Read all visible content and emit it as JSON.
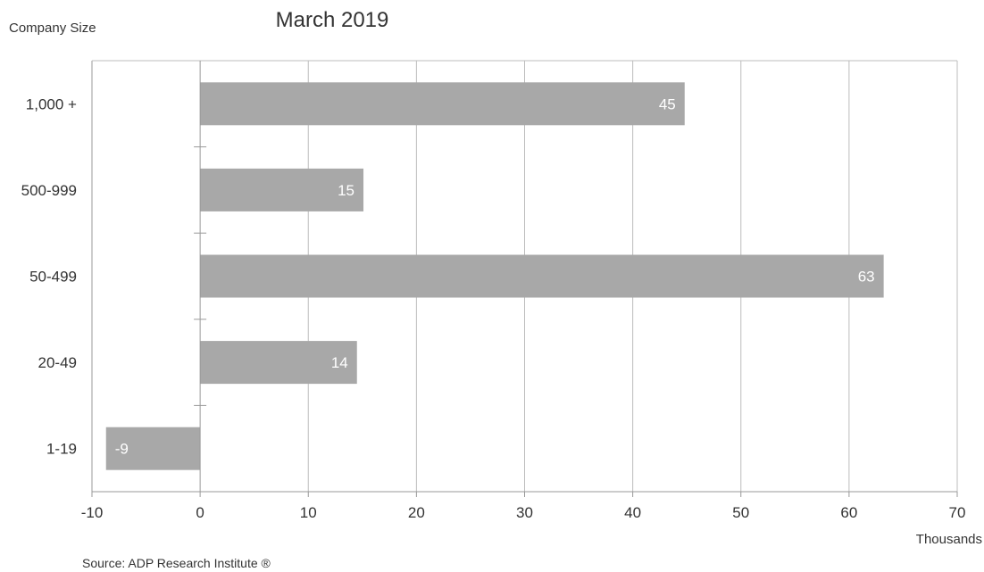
{
  "chart_data": {
    "type": "bar",
    "orientation": "horizontal",
    "title": "March 2019",
    "ylabel": "Company Size",
    "xlabel": "Thousands",
    "source": "Source: ADP Research Institute ®",
    "categories": [
      "1,000 +",
      "500-999",
      "50-499",
      "20-49",
      "1-19"
    ],
    "series": [
      {
        "values": [
          44.8,
          15.1,
          63.2,
          14.5,
          -8.7
        ],
        "data_labels": [
          "45",
          "15",
          "63",
          "14",
          "-9"
        ]
      }
    ],
    "xlim": [
      -10,
      70
    ],
    "xticks": [
      -10,
      0,
      10,
      20,
      30,
      40,
      50,
      60,
      70
    ],
    "grid": "vertical",
    "legend": "none",
    "colors": {
      "bar": "#a8a8a8",
      "grid": "#bdbdbd",
      "axis": "#999999",
      "data_label": "#ffffff"
    }
  }
}
